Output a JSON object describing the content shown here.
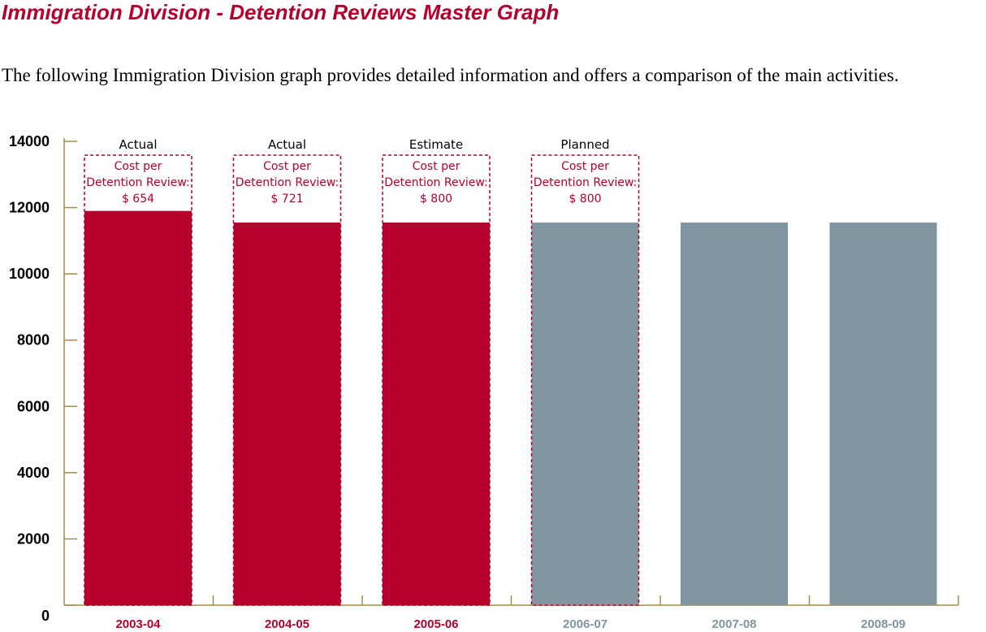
{
  "title": "Immigration Division - Detention Reviews Master Graph",
  "intro": "The following Immigration Division graph provides detailed information and offers a comparison of the main activities.",
  "colors": {
    "title": "#b5002d",
    "actual_bar": "#b5002d",
    "planned_bar": "#7f959f",
    "axis": "#a08d4c",
    "note": "#b5002d"
  },
  "chart_data": {
    "type": "bar",
    "categories": [
      "2003-04",
      "2004-05",
      "2005-06",
      "2006-07",
      "2007-08",
      "2008-09"
    ],
    "values": [
      11900,
      11550,
      11550,
      11550,
      11550,
      11550
    ],
    "bar_colors": [
      "#b5002d",
      "#b5002d",
      "#b5002d",
      "#7f959f",
      "#7f959f",
      "#7f959f"
    ],
    "ylim": [
      0,
      14000
    ],
    "yticks": [
      0,
      2000,
      4000,
      6000,
      8000,
      10000,
      12000,
      14000
    ],
    "grid": false,
    "annotations": [
      {
        "category": "2003-04",
        "status": "Actual",
        "line1": "Cost per",
        "line2": "Detention Review:",
        "line3": "$ 654"
      },
      {
        "category": "2004-05",
        "status": "Actual",
        "line1": "Cost per",
        "line2": "Detention Review:",
        "line3": "$ 721"
      },
      {
        "category": "2005-06",
        "status": "Estimate",
        "line1": "Cost per",
        "line2": "Detention Review:",
        "line3": "$ 800"
      },
      {
        "category": "2006-07",
        "status": "Planned",
        "line1": "Cost per",
        "line2": "Detention Review:",
        "line3": "$ 800"
      }
    ]
  }
}
